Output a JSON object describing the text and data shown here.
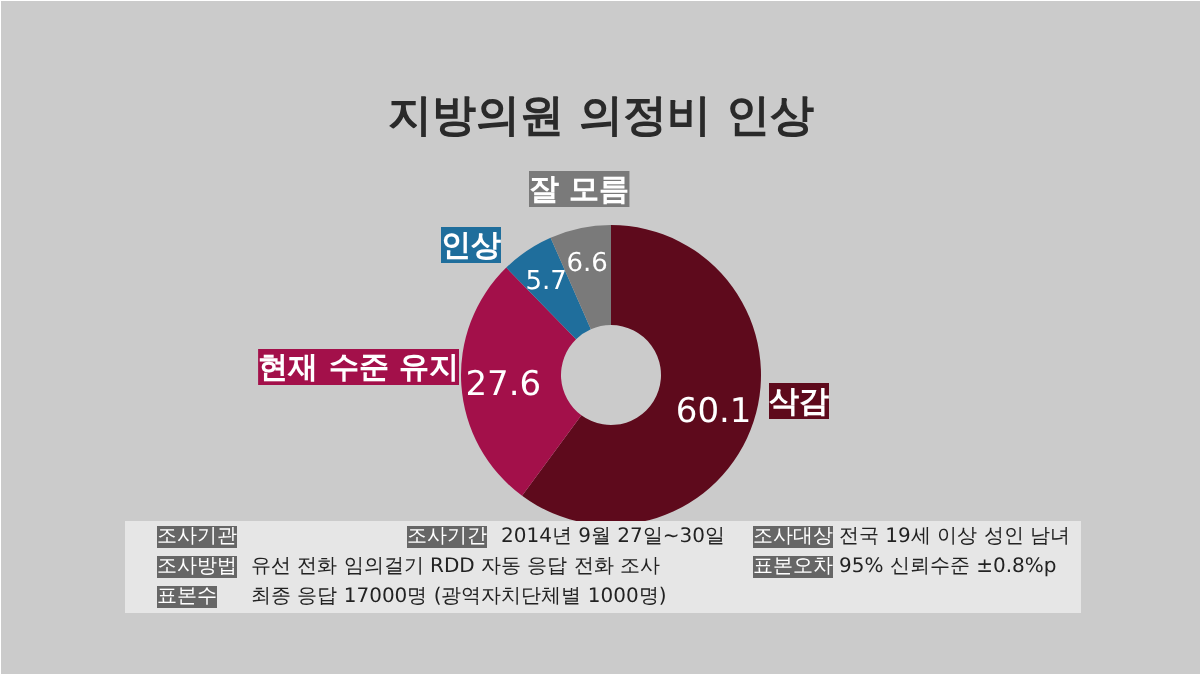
{
  "chart_data": {
    "type": "donut",
    "title": "지방의원 의정비 인상",
    "categories": [
      "삭감",
      "현재 수준 유지",
      "인상",
      "잘 모름"
    ],
    "values": [
      60.1,
      27.6,
      5.7,
      6.6
    ],
    "colors": [
      "#5e0a1c",
      "#a3104a",
      "#1f6e9c",
      "#7a7a7a"
    ],
    "data_labels": true,
    "annotations": [
      "조사기관",
      "조사기간",
      "2014년 9월 27일~30일",
      "조사대상",
      "전국 19세 이상 성인 남녀",
      "조사방법",
      "유선 전화 임의걸기 RDD 자동 응답 전화 조사",
      "표본오차",
      "95% 신뢰수준 ±0.8%p",
      "표본수",
      "최종 응답 17000명 (광역자치단체별 1000명)"
    ]
  }
}
